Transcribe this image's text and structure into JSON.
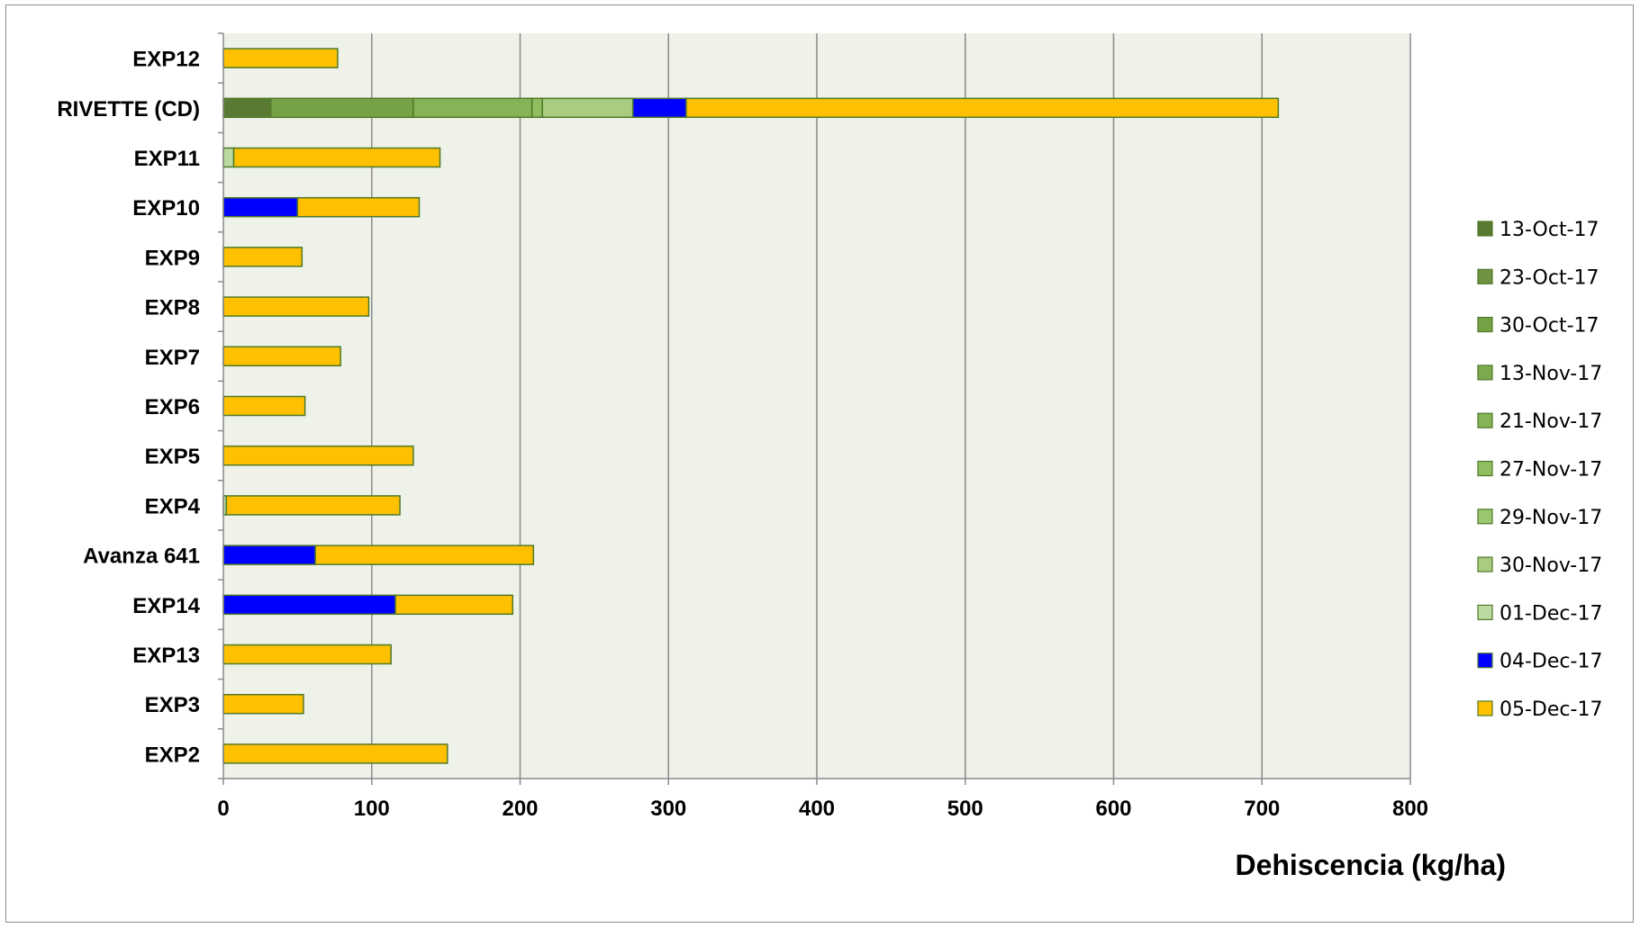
{
  "chart_data": {
    "type": "bar",
    "orientation": "horizontal",
    "stacked": true,
    "categories": [
      "EXP12",
      "RIVETTE (CD)",
      "EXP11",
      "EXP10",
      "EXP9",
      "EXP8",
      "EXP7",
      "EXP6",
      "EXP5",
      "EXP4",
      "Avanza 641",
      "EXP14",
      "EXP13",
      "EXP3",
      "EXP2"
    ],
    "series": [
      {
        "name": "13-Oct-17",
        "color": "#5a7a33",
        "values": [
          0,
          32,
          0,
          0,
          0,
          0,
          0,
          0,
          0,
          0,
          0,
          0,
          0,
          0,
          0
        ]
      },
      {
        "name": "23-Oct-17",
        "color": "#6f9140",
        "values": [
          0,
          0,
          0,
          0,
          0,
          0,
          0,
          0,
          0,
          0,
          0,
          0,
          0,
          0,
          0
        ]
      },
      {
        "name": "30-Oct-17",
        "color": "#77a145",
        "values": [
          0,
          96,
          0,
          0,
          0,
          0,
          0,
          0,
          0,
          0,
          0,
          0,
          0,
          0,
          0
        ]
      },
      {
        "name": "13-Nov-17",
        "color": "#7ea84e",
        "values": [
          0,
          0,
          0,
          0,
          0,
          0,
          0,
          0,
          0,
          0,
          0,
          0,
          0,
          0,
          0
        ]
      },
      {
        "name": "21-Nov-17",
        "color": "#86b356",
        "values": [
          0,
          80,
          0,
          0,
          0,
          0,
          0,
          0,
          0,
          0,
          0,
          0,
          0,
          0,
          0
        ]
      },
      {
        "name": "27-Nov-17",
        "color": "#90bd5f",
        "values": [
          0,
          7,
          0,
          0,
          0,
          0,
          0,
          0,
          0,
          0,
          0,
          0,
          0,
          0,
          0
        ]
      },
      {
        "name": "29-Nov-17",
        "color": "#9dc670",
        "values": [
          0,
          0,
          0,
          0,
          0,
          0,
          0,
          0,
          0,
          0,
          0,
          0,
          0,
          0,
          0
        ]
      },
      {
        "name": "30-Nov-17",
        "color": "#a9cc80",
        "values": [
          0,
          61,
          0,
          0,
          0,
          0,
          0,
          0,
          0,
          0,
          0,
          0,
          0,
          0,
          0
        ]
      },
      {
        "name": "01-Dec-17",
        "color": "#bcd9a0",
        "values": [
          0,
          0,
          7,
          0,
          0,
          0,
          0,
          0,
          0,
          2,
          0,
          0,
          0,
          0,
          0
        ]
      },
      {
        "name": "04-Dec-17",
        "color": "#0000ff",
        "values": [
          0,
          36,
          0,
          50,
          0,
          0,
          0,
          0,
          0,
          0,
          62,
          116,
          0,
          0,
          0
        ]
      },
      {
        "name": "05-Dec-17",
        "color": "#ffc000",
        "values": [
          77,
          399,
          139,
          82,
          53,
          98,
          79,
          55,
          128,
          117,
          147,
          79,
          113,
          54,
          151
        ]
      }
    ],
    "xlabel": "Dehiscencia (kg/ha)",
    "ylabel": "",
    "xlim": [
      0,
      800
    ],
    "xticks": [
      0,
      100,
      200,
      300,
      400,
      500,
      600,
      700,
      800
    ],
    "grid": "vertical major gridlines",
    "legend_position": "right",
    "plot_background": "#eef2e8",
    "bar_outline": "#4f7a28"
  }
}
